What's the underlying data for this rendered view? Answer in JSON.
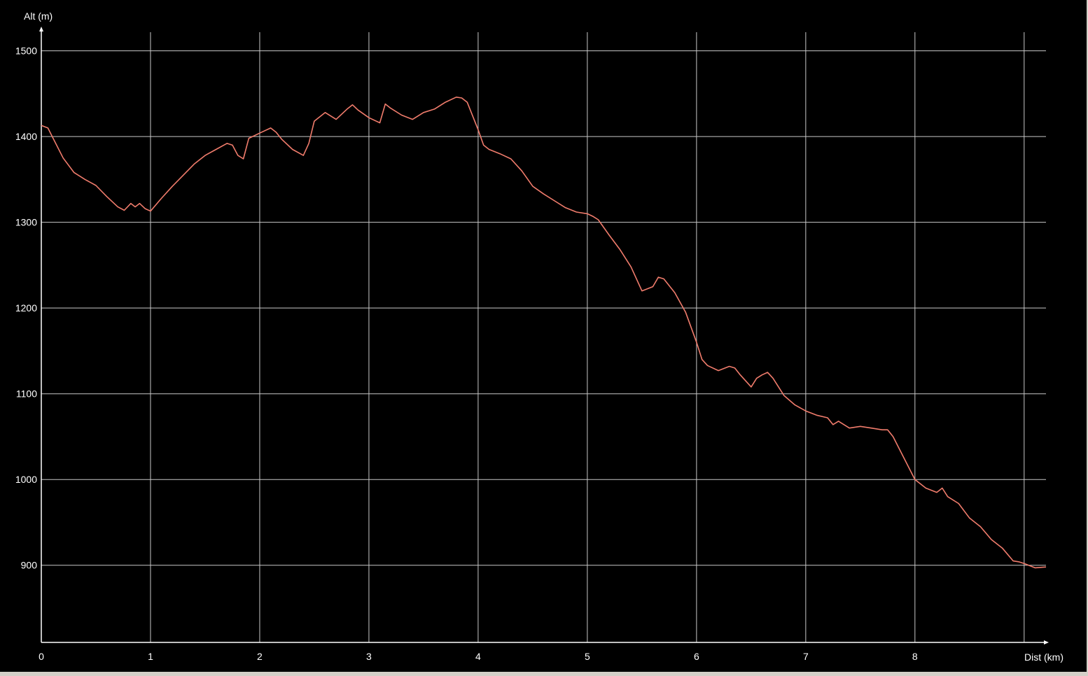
{
  "chart_data": {
    "type": "line",
    "title": "",
    "xlabel": "Dist (km)",
    "ylabel": "Alt (m)",
    "xlim": [
      0,
      9.2
    ],
    "ylim": [
      810,
      1525
    ],
    "x_ticks": [
      0,
      1,
      2,
      3,
      4,
      5,
      6,
      7,
      8,
      9
    ],
    "x_tick_labels": [
      "0",
      "1",
      "2",
      "3",
      "4",
      "5",
      "6",
      "7",
      "8",
      ""
    ],
    "y_ticks": [
      900,
      1000,
      1100,
      1200,
      1300,
      1400,
      1500
    ],
    "y_tick_labels": [
      "900",
      "1000",
      "1100",
      "1200",
      "1300",
      "1400",
      "1500"
    ],
    "grid": true,
    "colors": {
      "background": "#000000",
      "grid": "#c8c8c8",
      "axis": "#ffffff",
      "text": "#ffffff",
      "line": "#f07c6c"
    },
    "series": [
      {
        "x": [
          0,
          0.06,
          0.1,
          0.2,
          0.3,
          0.4,
          0.5,
          0.6,
          0.7,
          0.76,
          0.82,
          0.86,
          0.9,
          0.95,
          1.0,
          1.1,
          1.2,
          1.3,
          1.4,
          1.5,
          1.6,
          1.7,
          1.75,
          1.8,
          1.85,
          1.9,
          2.0,
          2.1,
          2.15,
          2.2,
          2.3,
          2.4,
          2.45,
          2.5,
          2.6,
          2.7,
          2.8,
          2.85,
          2.9,
          3.0,
          3.1,
          3.15,
          3.2,
          3.3,
          3.4,
          3.5,
          3.6,
          3.7,
          3.8,
          3.85,
          3.9,
          4.0,
          4.05,
          4.1,
          4.2,
          4.3,
          4.4,
          4.5,
          4.6,
          4.7,
          4.8,
          4.9,
          5.0,
          5.05,
          5.1,
          5.2,
          5.3,
          5.4,
          5.5,
          5.6,
          5.65,
          5.7,
          5.8,
          5.9,
          6.0,
          6.05,
          6.1,
          6.2,
          6.3,
          6.35,
          6.4,
          6.5,
          6.55,
          6.6,
          6.65,
          6.7,
          6.8,
          6.9,
          7.0,
          7.1,
          7.2,
          7.25,
          7.3,
          7.35,
          7.4,
          7.5,
          7.6,
          7.7,
          7.75,
          7.8,
          7.9,
          8.0,
          8.1,
          8.2,
          8.25,
          8.3,
          8.4,
          8.5,
          8.6,
          8.7,
          8.8,
          8.9,
          8.95,
          9.0,
          9.1,
          9.2
        ],
        "y": [
          1413,
          1410,
          1400,
          1375,
          1358,
          1350,
          1343,
          1330,
          1318,
          1314,
          1322,
          1318,
          1322,
          1316,
          1313,
          1328,
          1342,
          1355,
          1368,
          1378,
          1385,
          1392,
          1390,
          1378,
          1374,
          1398,
          1404,
          1410,
          1405,
          1397,
          1385,
          1378,
          1392,
          1418,
          1428,
          1420,
          1432,
          1437,
          1431,
          1422,
          1416,
          1438,
          1433,
          1425,
          1420,
          1428,
          1432,
          1440,
          1446,
          1445,
          1440,
          1408,
          1390,
          1385,
          1380,
          1374,
          1360,
          1342,
          1333,
          1325,
          1317,
          1312,
          1310,
          1307,
          1303,
          1285,
          1268,
          1248,
          1220,
          1225,
          1236,
          1234,
          1218,
          1195,
          1160,
          1140,
          1133,
          1127,
          1132,
          1130,
          1122,
          1108,
          1118,
          1122,
          1125,
          1118,
          1098,
          1087,
          1080,
          1075,
          1072,
          1064,
          1068,
          1064,
          1060,
          1062,
          1060,
          1058,
          1058,
          1050,
          1025,
          1000,
          990,
          985,
          990,
          980,
          972,
          955,
          945,
          930,
          920,
          905,
          904,
          902,
          897,
          898
        ]
      }
    ]
  }
}
